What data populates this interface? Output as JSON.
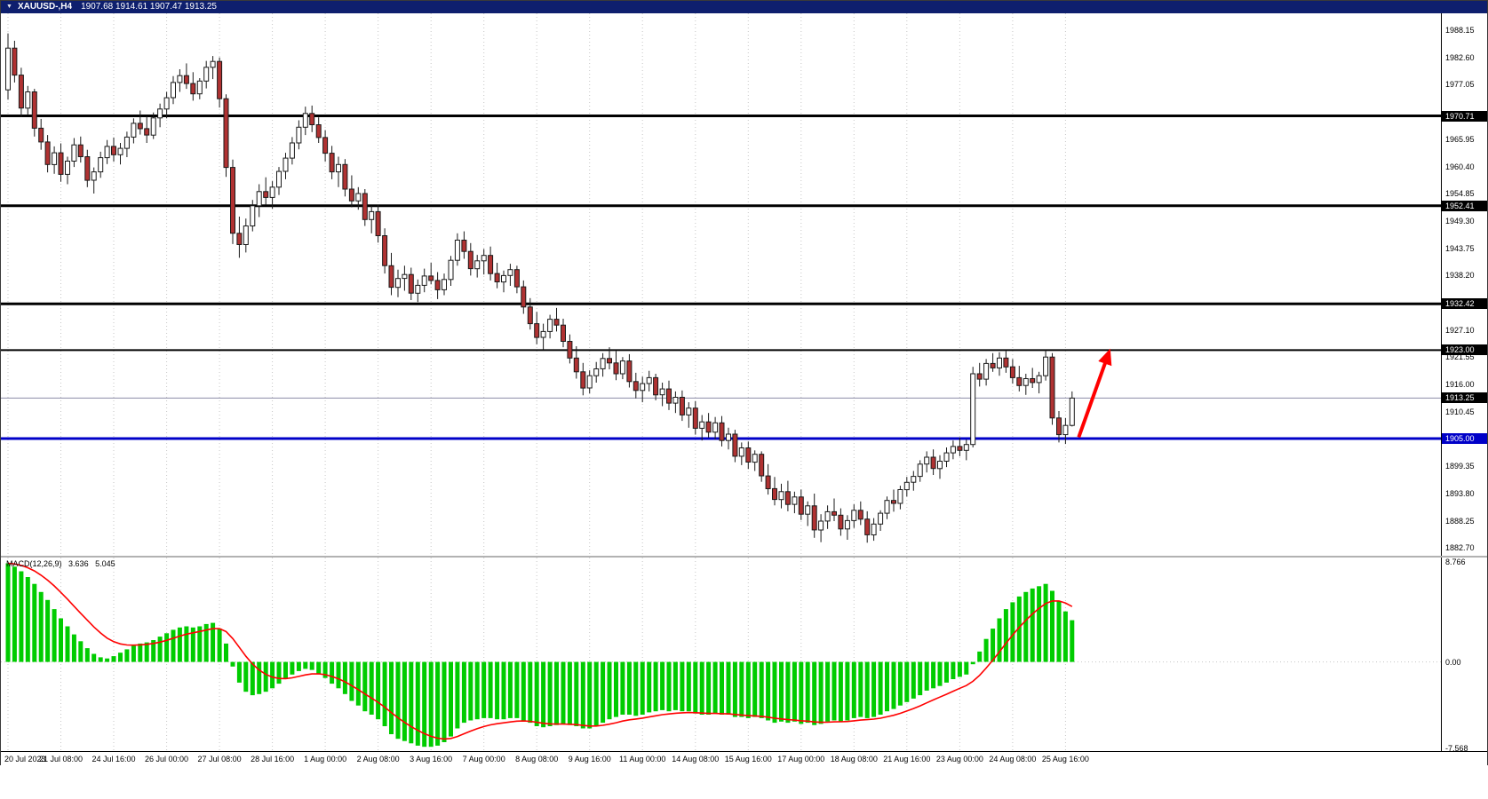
{
  "window": {
    "title_bar": {
      "collapse_icon": "▼",
      "symbol_period": "XAUUSD-,H4",
      "quote": "1907.68 1914.61 1907.47 1913.25",
      "bg_color": "#0e1f6e"
    }
  },
  "chart_data": {
    "type": "candlestick",
    "symbol": "XAUUSD-",
    "timeframe": "H4",
    "last_ohlc": {
      "open": "1907.68",
      "high": "1914.61",
      "low": "1907.47",
      "close": "1913.25"
    },
    "colors": {
      "bull": "#ffffff",
      "bear": "#b03232",
      "wick": "#1a1a1a",
      "grid": "#c6c6c6",
      "macd_histogram": "#00cc00",
      "macd_signal": "#ff0000",
      "level_black": "#000000",
      "level_blue": "#0000c8",
      "arrow": "#ff0000"
    },
    "price_axis": {
      "ticks": [
        "1988.15",
        "1982.60",
        "1977.05",
        "1965.95",
        "1960.40",
        "1954.85",
        "1949.30",
        "1943.75",
        "1938.20",
        "1927.10",
        "1921.55",
        "1916.00",
        "1910.45",
        "1899.35",
        "1893.80",
        "1888.25",
        "1882.70"
      ]
    },
    "levels": [
      {
        "price": 1970.71,
        "label": "1970.71",
        "color": "#000000",
        "width": 3
      },
      {
        "price": 1952.41,
        "label": "1952.41",
        "color": "#000000",
        "width": 3
      },
      {
        "price": 1932.42,
        "label": "1932.42",
        "color": "#000000",
        "width": 3
      },
      {
        "price": 1923.0,
        "label": "1923.00",
        "color": "#000000",
        "width": 2
      },
      {
        "price": 1905.0,
        "label": "1905.00",
        "color": "#0000c8",
        "width": 3
      }
    ],
    "last_price": {
      "value": 1913.25,
      "label": "1913.25"
    },
    "x_axis": {
      "labels": [
        {
          "index": 0,
          "text": "20 Jul 2023"
        },
        {
          "index": 8,
          "text": "21 Jul 08:00"
        },
        {
          "index": 16,
          "text": "24 Jul 16:00"
        },
        {
          "index": 24,
          "text": "26 Jul 00:00"
        },
        {
          "index": 32,
          "text": "27 Jul 08:00"
        },
        {
          "index": 40,
          "text": "28 Jul 16:00"
        },
        {
          "index": 48,
          "text": "1 Aug 00:00"
        },
        {
          "index": 56,
          "text": "2 Aug 08:00"
        },
        {
          "index": 64,
          "text": "3 Aug 16:00"
        },
        {
          "index": 72,
          "text": "7 Aug 00:00"
        },
        {
          "index": 80,
          "text": "8 Aug 08:00"
        },
        {
          "index": 88,
          "text": "9 Aug 16:00"
        },
        {
          "index": 96,
          "text": "11 Aug 00:00"
        },
        {
          "index": 104,
          "text": "14 Aug 08:00"
        },
        {
          "index": 112,
          "text": "15 Aug 16:00"
        },
        {
          "index": 120,
          "text": "17 Aug 00:00"
        },
        {
          "index": 128,
          "text": "18 Aug 08:00"
        },
        {
          "index": 136,
          "text": "21 Aug 16:00"
        },
        {
          "index": 144,
          "text": "23 Aug 00:00"
        },
        {
          "index": 152,
          "text": "24 Aug 08:00"
        },
        {
          "index": 160,
          "text": "25 Aug 16:00"
        }
      ]
    },
    "candles": [
      [
        1976.0,
        1987.5,
        1974.0,
        1984.5
      ],
      [
        1984.5,
        1986.0,
        1977.5,
        1979.0
      ],
      [
        1979.0,
        1980.5,
        1970.5,
        1972.3
      ],
      [
        1972.3,
        1976.8,
        1971.0,
        1975.6
      ],
      [
        1975.6,
        1976.2,
        1966.5,
        1968.2
      ],
      [
        1968.2,
        1970.1,
        1963.8,
        1965.4
      ],
      [
        1965.4,
        1966.8,
        1959.2,
        1960.8
      ],
      [
        1960.8,
        1964.5,
        1958.9,
        1963.2
      ],
      [
        1963.2,
        1965.1,
        1957.3,
        1958.8
      ],
      [
        1958.8,
        1962.4,
        1956.8,
        1961.5
      ],
      [
        1961.5,
        1966.2,
        1960.3,
        1964.8
      ],
      [
        1964.8,
        1966.5,
        1961.2,
        1962.4
      ],
      [
        1962.4,
        1963.8,
        1956.2,
        1957.6
      ],
      [
        1957.6,
        1960.2,
        1954.9,
        1959.3
      ],
      [
        1959.3,
        1963.4,
        1958.1,
        1962.2
      ],
      [
        1962.2,
        1965.8,
        1960.9,
        1964.5
      ],
      [
        1964.5,
        1966.3,
        1961.4,
        1962.8
      ],
      [
        1962.8,
        1965.2,
        1960.8,
        1964.1
      ],
      [
        1964.1,
        1967.5,
        1962.3,
        1966.4
      ],
      [
        1966.4,
        1970.2,
        1965.1,
        1969.2
      ],
      [
        1969.2,
        1971.8,
        1966.9,
        1968.1
      ],
      [
        1968.1,
        1970.6,
        1965.2,
        1966.8
      ],
      [
        1966.8,
        1971.4,
        1966.0,
        1970.3
      ],
      [
        1970.3,
        1973.2,
        1968.4,
        1972.1
      ],
      [
        1972.1,
        1975.6,
        1970.2,
        1974.4
      ],
      [
        1974.4,
        1978.8,
        1973.1,
        1977.5
      ],
      [
        1977.5,
        1980.2,
        1975.6,
        1978.9
      ],
      [
        1978.9,
        1981.4,
        1976.2,
        1977.3
      ],
      [
        1977.3,
        1979.6,
        1973.8,
        1975.2
      ],
      [
        1975.2,
        1978.4,
        1974.1,
        1977.8
      ],
      [
        1977.8,
        1981.9,
        1976.3,
        1980.6
      ],
      [
        1980.6,
        1982.9,
        1978.2,
        1981.8
      ],
      [
        1981.8,
        1982.6,
        1972.4,
        1974.2
      ],
      [
        1974.2,
        1975.1,
        1958.3,
        1960.2
      ],
      [
        1960.2,
        1961.8,
        1944.6,
        1946.8
      ],
      [
        1946.8,
        1950.2,
        1941.8,
        1944.5
      ],
      [
        1944.5,
        1949.8,
        1942.9,
        1948.3
      ],
      [
        1948.3,
        1953.6,
        1947.2,
        1952.4
      ],
      [
        1952.4,
        1956.8,
        1950.1,
        1955.3
      ],
      [
        1955.3,
        1958.2,
        1952.6,
        1954.1
      ],
      [
        1954.1,
        1957.4,
        1951.8,
        1956.2
      ],
      [
        1956.2,
        1960.3,
        1954.6,
        1959.4
      ],
      [
        1959.4,
        1963.2,
        1957.8,
        1962.1
      ],
      [
        1962.1,
        1966.4,
        1960.8,
        1965.2
      ],
      [
        1965.2,
        1969.8,
        1963.9,
        1968.4
      ],
      [
        1968.4,
        1972.6,
        1966.8,
        1971.2
      ],
      [
        1971.2,
        1972.8,
        1967.4,
        1968.9
      ],
      [
        1968.9,
        1970.4,
        1965.2,
        1966.3
      ],
      [
        1966.3,
        1967.8,
        1961.4,
        1963.1
      ],
      [
        1963.1,
        1964.6,
        1957.8,
        1959.3
      ],
      [
        1959.3,
        1962.4,
        1956.2,
        1960.8
      ],
      [
        1960.8,
        1961.9,
        1954.3,
        1955.8
      ],
      [
        1955.8,
        1958.6,
        1952.1,
        1953.4
      ],
      [
        1953.4,
        1956.2,
        1951.6,
        1954.9
      ],
      [
        1954.9,
        1955.8,
        1948.3,
        1949.6
      ],
      [
        1949.6,
        1952.4,
        1946.8,
        1951.2
      ],
      [
        1951.2,
        1952.6,
        1944.9,
        1946.3
      ],
      [
        1946.3,
        1947.8,
        1938.6,
        1940.2
      ],
      [
        1940.2,
        1942.8,
        1934.2,
        1935.8
      ],
      [
        1935.8,
        1939.4,
        1933.8,
        1937.6
      ],
      [
        1937.6,
        1940.2,
        1935.1,
        1938.4
      ],
      [
        1938.4,
        1939.8,
        1933.2,
        1934.6
      ],
      [
        1934.6,
        1937.4,
        1932.8,
        1936.2
      ],
      [
        1936.2,
        1939.6,
        1934.8,
        1938.1
      ],
      [
        1938.1,
        1940.8,
        1936.4,
        1937.2
      ],
      [
        1937.2,
        1938.9,
        1933.4,
        1935.3
      ],
      [
        1935.3,
        1938.6,
        1934.2,
        1937.4
      ],
      [
        1937.4,
        1942.2,
        1936.1,
        1941.3
      ],
      [
        1941.3,
        1946.8,
        1940.2,
        1945.4
      ],
      [
        1945.4,
        1947.2,
        1941.6,
        1943.1
      ],
      [
        1943.1,
        1944.8,
        1938.2,
        1939.6
      ],
      [
        1939.6,
        1942.4,
        1937.8,
        1941.2
      ],
      [
        1941.2,
        1943.6,
        1938.4,
        1942.3
      ],
      [
        1942.3,
        1944.1,
        1937.2,
        1938.6
      ],
      [
        1938.6,
        1940.8,
        1935.6,
        1936.9
      ],
      [
        1936.9,
        1939.2,
        1934.8,
        1938.2
      ],
      [
        1938.2,
        1940.6,
        1936.1,
        1939.4
      ],
      [
        1939.4,
        1940.2,
        1934.6,
        1935.9
      ],
      [
        1935.9,
        1937.2,
        1930.4,
        1931.8
      ],
      [
        1931.8,
        1933.6,
        1927.2,
        1928.4
      ],
      [
        1928.4,
        1930.8,
        1924.2,
        1925.6
      ],
      [
        1925.6,
        1928.4,
        1923.1,
        1926.8
      ],
      [
        1926.8,
        1930.2,
        1925.4,
        1929.3
      ],
      [
        1929.3,
        1931.6,
        1926.8,
        1928.1
      ],
      [
        1928.1,
        1929.4,
        1923.6,
        1924.8
      ],
      [
        1924.8,
        1926.2,
        1920.3,
        1921.4
      ],
      [
        1921.4,
        1923.8,
        1917.2,
        1918.6
      ],
      [
        1918.6,
        1920.4,
        1913.8,
        1915.3
      ],
      [
        1915.3,
        1918.9,
        1914.2,
        1917.8
      ],
      [
        1917.8,
        1920.6,
        1916.4,
        1919.2
      ],
      [
        1919.2,
        1922.4,
        1917.6,
        1921.3
      ],
      [
        1921.3,
        1923.6,
        1919.1,
        1920.4
      ],
      [
        1920.4,
        1922.8,
        1916.9,
        1918.2
      ],
      [
        1918.2,
        1921.6,
        1917.1,
        1920.8
      ],
      [
        1920.8,
        1922.2,
        1915.4,
        1916.6
      ],
      [
        1916.6,
        1918.4,
        1913.2,
        1914.8
      ],
      [
        1914.8,
        1917.6,
        1912.4,
        1916.2
      ],
      [
        1916.2,
        1918.8,
        1914.6,
        1917.4
      ],
      [
        1917.4,
        1918.2,
        1912.8,
        1913.9
      ],
      [
        1913.9,
        1916.4,
        1911.6,
        1915.1
      ],
      [
        1915.1,
        1916.8,
        1910.8,
        1912.2
      ],
      [
        1912.2,
        1914.6,
        1910.2,
        1913.4
      ],
      [
        1913.4,
        1914.8,
        1908.6,
        1909.8
      ],
      [
        1909.8,
        1912.4,
        1907.2,
        1911.2
      ],
      [
        1911.2,
        1912.6,
        1905.8,
        1907.1
      ],
      [
        1907.1,
        1909.8,
        1904.6,
        1908.4
      ],
      [
        1908.4,
        1910.2,
        1905.2,
        1906.3
      ],
      [
        1906.3,
        1909.4,
        1904.8,
        1908.2
      ],
      [
        1908.2,
        1909.6,
        1903.4,
        1904.6
      ],
      [
        1904.6,
        1907.2,
        1902.8,
        1905.9
      ],
      [
        1905.9,
        1906.8,
        1900.2,
        1901.4
      ],
      [
        1901.4,
        1904.2,
        1899.6,
        1903.1
      ],
      [
        1903.1,
        1904.4,
        1898.8,
        1900.2
      ],
      [
        1900.2,
        1902.6,
        1898.4,
        1901.8
      ],
      [
        1901.8,
        1902.4,
        1896.2,
        1897.4
      ],
      [
        1897.4,
        1899.8,
        1893.6,
        1894.8
      ],
      [
        1894.8,
        1897.2,
        1891.4,
        1892.6
      ],
      [
        1892.6,
        1895.8,
        1890.8,
        1894.2
      ],
      [
        1894.2,
        1896.4,
        1890.2,
        1891.6
      ],
      [
        1891.6,
        1894.2,
        1889.8,
        1893.1
      ],
      [
        1893.1,
        1894.6,
        1888.4,
        1889.6
      ],
      [
        1889.6,
        1892.2,
        1887.2,
        1891.3
      ],
      [
        1891.3,
        1893.8,
        1884.8,
        1886.4
      ],
      [
        1886.4,
        1889.6,
        1883.9,
        1888.2
      ],
      [
        1888.2,
        1891.4,
        1886.6,
        1890.1
      ],
      [
        1890.1,
        1892.8,
        1888.2,
        1889.4
      ],
      [
        1889.4,
        1890.8,
        1885.2,
        1886.6
      ],
      [
        1886.6,
        1889.4,
        1884.4,
        1888.3
      ],
      [
        1888.3,
        1891.6,
        1886.8,
        1890.4
      ],
      [
        1890.4,
        1892.2,
        1887.4,
        1888.6
      ],
      [
        1888.6,
        1890.2,
        1883.8,
        1885.4
      ],
      [
        1885.4,
        1888.8,
        1884.2,
        1887.6
      ],
      [
        1887.6,
        1890.4,
        1886.2,
        1889.8
      ],
      [
        1889.8,
        1893.2,
        1888.6,
        1892.4
      ],
      [
        1892.4,
        1894.6,
        1890.1,
        1891.8
      ],
      [
        1891.8,
        1895.4,
        1890.6,
        1894.6
      ],
      [
        1894.6,
        1897.2,
        1893.2,
        1896.1
      ],
      [
        1896.1,
        1898.4,
        1894.4,
        1897.3
      ],
      [
        1897.3,
        1900.6,
        1896.2,
        1899.8
      ],
      [
        1899.8,
        1902.4,
        1898.1,
        1901.2
      ],
      [
        1901.2,
        1902.8,
        1897.6,
        1898.9
      ],
      [
        1898.9,
        1901.6,
        1896.8,
        1900.4
      ],
      [
        1900.4,
        1903.2,
        1899.2,
        1902.1
      ],
      [
        1902.1,
        1904.6,
        1900.8,
        1903.4
      ],
      [
        1903.4,
        1905.2,
        1901.4,
        1902.6
      ],
      [
        1902.6,
        1904.8,
        1900.6,
        1903.8
      ],
      [
        1903.8,
        1919.6,
        1903.2,
        1918.2
      ],
      [
        1918.2,
        1920.4,
        1915.6,
        1917.1
      ],
      [
        1917.1,
        1921.2,
        1915.8,
        1920.3
      ],
      [
        1920.3,
        1922.4,
        1918.6,
        1919.4
      ],
      [
        1919.4,
        1922.6,
        1917.8,
        1921.4
      ],
      [
        1921.4,
        1922.8,
        1918.4,
        1919.6
      ],
      [
        1919.6,
        1921.2,
        1916.2,
        1917.4
      ],
      [
        1917.4,
        1919.8,
        1914.6,
        1915.8
      ],
      [
        1915.8,
        1918.2,
        1913.9,
        1917.2
      ],
      [
        1917.2,
        1919.4,
        1915.3,
        1916.4
      ],
      [
        1916.4,
        1918.6,
        1914.2,
        1917.8
      ],
      [
        1917.8,
        1923.0,
        1916.8,
        1921.6
      ],
      [
        1921.6,
        1922.4,
        1907.8,
        1909.2
      ],
      [
        1909.2,
        1910.6,
        1904.2,
        1905.8
      ],
      [
        1905.8,
        1909.2,
        1903.9,
        1907.68
      ],
      [
        1907.68,
        1914.61,
        1907.47,
        1913.25
      ]
    ],
    "macd": {
      "name_label": "MACD(12,26,9)",
      "main_value": "3.636",
      "signal_value": "5.045",
      "signal_period": 9,
      "axis_ticks": [
        {
          "value": 8.766,
          "label": "8.766"
        },
        {
          "value": 0,
          "label": "0.00"
        },
        {
          "value": -7.568,
          "label": "-7.568"
        }
      ],
      "histogram": [
        8.6,
        8.3,
        7.9,
        7.4,
        6.8,
        6.1,
        5.4,
        4.6,
        3.8,
        3.1,
        2.4,
        1.8,
        1.2,
        0.7,
        0.4,
        0.3,
        0.5,
        0.8,
        1.1,
        1.4,
        1.6,
        1.7,
        1.9,
        2.2,
        2.5,
        2.8,
        3.0,
        3.1,
        3.0,
        3.1,
        3.3,
        3.4,
        2.9,
        1.6,
        -0.4,
        -1.8,
        -2.6,
        -2.9,
        -2.8,
        -2.6,
        -2.3,
        -1.9,
        -1.5,
        -1.1,
        -0.8,
        -0.6,
        -0.7,
        -1.0,
        -1.4,
        -1.9,
        -2.3,
        -2.8,
        -3.4,
        -3.8,
        -4.3,
        -4.6,
        -5.0,
        -5.6,
        -6.3,
        -6.7,
        -6.9,
        -7.1,
        -7.3,
        -7.4,
        -7.4,
        -7.3,
        -7.0,
        -6.5,
        -5.8,
        -5.3,
        -5.1,
        -5.0,
        -4.9,
        -4.9,
        -5.0,
        -5.0,
        -4.9,
        -4.9,
        -5.1,
        -5.3,
        -5.6,
        -5.7,
        -5.6,
        -5.5,
        -5.4,
        -5.5,
        -5.6,
        -5.8,
        -5.8,
        -5.6,
        -5.3,
        -5.0,
        -4.8,
        -4.6,
        -4.6,
        -4.7,
        -4.6,
        -4.4,
        -4.3,
        -4.2,
        -4.3,
        -4.2,
        -4.3,
        -4.3,
        -4.5,
        -4.6,
        -4.6,
        -4.5,
        -4.6,
        -4.6,
        -4.8,
        -4.8,
        -4.9,
        -4.8,
        -4.9,
        -5.1,
        -5.3,
        -5.2,
        -5.3,
        -5.2,
        -5.4,
        -5.3,
        -5.5,
        -5.4,
        -5.2,
        -5.1,
        -5.2,
        -5.1,
        -4.9,
        -4.8,
        -4.9,
        -4.8,
        -4.6,
        -4.3,
        -4.1,
        -3.8,
        -3.5,
        -3.2,
        -2.9,
        -2.5,
        -2.3,
        -2.1,
        -1.8,
        -1.5,
        -1.3,
        -1.1,
        -0.2,
        0.9,
        2.0,
        2.9,
        3.8,
        4.6,
        5.2,
        5.7,
        6.1,
        6.4,
        6.6,
        6.8,
        6.2,
        5.3,
        4.4,
        3.636
      ]
    },
    "annotations": [
      {
        "type": "arrow",
        "color": "#ff0000",
        "from": {
          "candle_index": 162,
          "price": 1905.3
        },
        "to": {
          "candle_index": 166.5,
          "price": 1922.3
        }
      }
    ]
  }
}
